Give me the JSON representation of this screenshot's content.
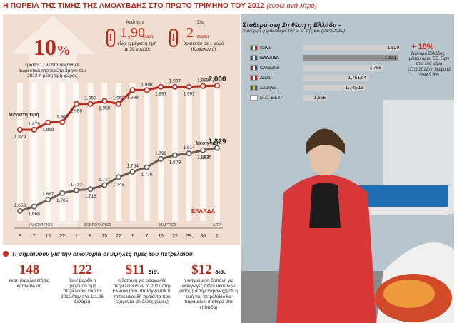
{
  "title": {
    "main": "Η ΠΟΡΕΙΑ ΤΗΣ ΤΙΜΗΣ ΤΗΣ ΑΜΟΛΥΒΔΗΣ ΣΤΟ ΠΡΩΤΟ ΤΡΙΜΗΝΟ ΤΟΥ 2012",
    "subtitle": "(ευρώ ανά λίτρο)"
  },
  "headline_stat": {
    "value": "10",
    "unit": "%",
    "note": "η κατά 17 λεπτά αυξήθηκε σωρευτικά στο πρώτο 3μηνο του 2012 η μέση τιμή χώρας"
  },
  "callouts": [
    {
      "prefix": "Ανώ των",
      "value": "1,90",
      "unit": "ευρώ",
      "note": "είναι η μέγιστη τιμή σε 39 νομούς"
    },
    {
      "prefix": "Στα",
      "value": "2",
      "unit": "ευρώ",
      "note": "βρίσκεται σε 1 νομό (Κεφαλονιά)"
    }
  ],
  "chart_data": {
    "type": "line",
    "title": "Η ΠΟΡΕΙΑ ΤΗΣ ΤΙΜΗΣ ΤΗΣ ΑΜΟΛΥΒΔΗΣ ΣΤΟ ΠΡΩΤΟ ΤΡΙΜΗΝΟ ΤΟΥ 2012",
    "ylabel": "ευρώ ανά λίτρο",
    "ylim": [
      1.64,
      2.02
    ],
    "x": [
      "3",
      "7",
      "15",
      "22",
      "1",
      "8",
      "15",
      "22",
      "1",
      "7",
      "15",
      "22",
      "29",
      "30",
      "1"
    ],
    "month_labels": [
      {
        "label": "ΙΑΝΟΥΑΡΙΟΣ",
        "start": 0,
        "end": 3
      },
      {
        "label": "ΦΕΒΡΟΥΑΡΙΟΣ",
        "start": 4,
        "end": 7
      },
      {
        "label": "ΜΑΡΤΙΟΣ",
        "start": 8,
        "end": 13
      },
      {
        "label": "ΑΠΡ.",
        "start": 14,
        "end": 14
      }
    ],
    "series": [
      {
        "name": "Μέγιστη τιμή",
        "values": [
          1.879,
          1.879,
          1.899,
          1.9,
          1.95,
          1.95,
          1.958,
          1.95,
          1.988,
          1.988,
          1.997,
          1.997,
          1.997,
          1.999,
          2.0
        ],
        "labels": [
          "1,879",
          "1,879",
          "1,899",
          "1,900",
          "1,950",
          "1,950",
          "1,958",
          "1,950",
          "1,988",
          "1,988",
          "1,997",
          "1,997",
          "1,997",
          "1,999",
          "2,000"
        ]
      },
      {
        "name": "Μέση τιμή",
        "values": [
          1.656,
          1.668,
          1.687,
          1.705,
          1.713,
          1.716,
          1.727,
          1.749,
          1.764,
          1.776,
          1.799,
          1.809,
          1.814,
          1.823,
          1.829
        ],
        "labels": [
          "1,656",
          "1,668",
          "1,687",
          "1,705",
          "1,713",
          "1,716",
          "1,727",
          "1,749",
          "1,764",
          "1,776",
          "1,799",
          "1,809",
          "1,814",
          "1,823",
          "1,829"
        ]
      }
    ],
    "country_label": "ΕΛΛΑΔΑ",
    "extra_label": "1,825"
  },
  "ranking": {
    "title": "Σταθερά στη 2η θέση η Ελλάδα -",
    "subtitle": "συνεχίζει η ψαλίδα με τον μ. ό. της ΕΕ (26/3/2012)",
    "rows": [
      {
        "country": "Ιταλία",
        "value": 1.829,
        "label": "1,829",
        "highlight": false,
        "flag_colors": [
          "#2a8a3c",
          "#ffffff",
          "#c8282a"
        ]
      },
      {
        "country": "ΕΛΛΑΔΑ",
        "value": 1.821,
        "label": "1,821",
        "highlight": true,
        "flag_colors": [
          "#1a5ab0",
          "#ffffff",
          "#1a5ab0"
        ]
      },
      {
        "country": "Ολλανδία",
        "value": 1.786,
        "label": "1,786",
        "highlight": false,
        "flag_colors": [
          "#b3252c",
          "#ffffff",
          "#2a4aa0"
        ]
      },
      {
        "country": "Δανία",
        "value": 1.751,
        "label": "1,751,04",
        "highlight": false,
        "flag_colors": [
          "#c4202c",
          "#ffffff",
          "#c4202c"
        ]
      },
      {
        "country": "Σουηδία",
        "value": 1.745,
        "label": "1,745,13",
        "highlight": false,
        "flag_colors": [
          "#2060a8",
          "#f1c71f",
          "#2060a8"
        ]
      },
      {
        "country": "Μ.Ο. ΕΕ27",
        "value": 1.656,
        "label": "1,656",
        "highlight": false,
        "flag_colors": [
          "#ffffff",
          "#ffffff",
          "#ffffff"
        ]
      }
    ],
    "diff_value": "+ 10%",
    "diff_note": "διαφορά Ελλάδας - μέσου όρου ΕΕ. Πριν από ένα μήνα (27/2/2012) η διαφορά ήταν 9,4%"
  },
  "bottom": {
    "title": "Τι σημαίνουν για την οικονομία οι υψηλές τιμές του πετρελαίου",
    "stats": [
      {
        "value": "148",
        "unit": "",
        "desc": "εκατ. βαρέλια ετήσια κατανάλωση"
      },
      {
        "value": "122",
        "unit": "",
        "desc": "δολ./ βαρέλι η τρέχουσα τιμή πετρελαίου, ενώ το 2011 ήταν στα 111,26 δολάρια"
      },
      {
        "value": "$11",
        "unit": "δισ.",
        "desc": "η δαπάνη για εισαγωγές πετρελαιοειδών το 2011 στην Ελλάδα (δεν υπολογίζονται τα πετρελαιοειδή προϊόντα που εξάγονται σε άλλες χώρες)"
      },
      {
        "value": "$12",
        "unit": "δισ.",
        "desc": "η εκτιμώμενη δαπάνη για εισαγωγές πετρελαιοειδών φέτος (με την παραδοχή ότι η τιμή του πετρελαίου θα παραμείνει σταθερά στα επίπεδα)"
      }
    ]
  },
  "colors": {
    "accent": "#b8291c",
    "max_line": "#b82a1f",
    "avg_line": "#6d5a55",
    "panel_bg": "#f1ddd0"
  }
}
